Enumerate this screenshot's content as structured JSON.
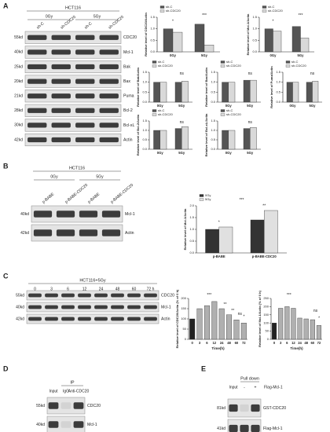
{
  "panel_labels": [
    "A",
    "B",
    "C",
    "D",
    "E"
  ],
  "blots": [
    {
      "header": "HCT116",
      "groups": [
        "0Gy",
        "5Gy"
      ],
      "lanes": [
        "sh-C",
        "sh-CDC20",
        "sh-C",
        "sh-CDC20"
      ],
      "rows": [
        {
          "size": "55kd",
          "name": "CDC20"
        },
        {
          "size": "40kd",
          "name": "Mcl-1"
        },
        {
          "size": "25kd",
          "name": "Bak"
        },
        {
          "size": "20kd",
          "name": "Bax"
        },
        {
          "size": "21kd",
          "name": "Puma"
        },
        {
          "size": "28kd",
          "name": "Bcl-2"
        },
        {
          "size": "30kd",
          "name": "Bcl-xL"
        },
        {
          "size": "42kd",
          "name": "Actin"
        }
      ]
    },
    {
      "header": "HCT116",
      "groups": [
        "0Gy",
        "5Gy"
      ],
      "lanes": [
        "p-BABE",
        "p-BABE-CDC20",
        "p-BABE",
        "p-BABE-CDC20"
      ],
      "rows": [
        {
          "size": "40kd",
          "name": "Mcl-1"
        },
        {
          "size": "42kd",
          "name": "Actin"
        }
      ]
    },
    {
      "header": "HCT116+5Gy",
      "lanes": [
        "0",
        "3",
        "6",
        "12",
        "24",
        "48",
        "60",
        "72 h"
      ],
      "rows": [
        {
          "size": "55kd",
          "name": "CDC20"
        },
        {
          "size": "40kd",
          "name": "Mcl-1"
        },
        {
          "size": "42kd",
          "name": "Actin"
        }
      ]
    },
    {
      "header": "IP",
      "lanes": [
        "Input",
        "IgG",
        "Anti-CDC20"
      ],
      "rows": [
        {
          "size": "55kd",
          "name": "CDC20"
        },
        {
          "size": "40kd",
          "name": "Mcl-1"
        }
      ]
    },
    {
      "header": "Pull down",
      "lanes": [
        "Input",
        "-",
        "+"
      ],
      "lane_label": "Flag-Mcl-1",
      "rows": [
        {
          "size": "81kd",
          "name": "GST-CDC20"
        },
        {
          "size": "41kd",
          "name": "Flag-Mcl-1"
        }
      ]
    }
  ],
  "chart_data": [
    {
      "type": "bar",
      "ylabel": "Relative level of CDC20/Actin",
      "categories": [
        "0Gy",
        "5Gy"
      ],
      "series": [
        {
          "name": "sh-C",
          "color": "#555555",
          "values": [
            1.0,
            1.2
          ]
        },
        {
          "name": "sh-CDC20",
          "color": "#d9d9d9",
          "values": [
            0.85,
            0.3
          ]
        }
      ],
      "ylim": [
        0,
        1.5
      ],
      "yticks": [
        {
          "value": 0,
          "label": "0.0"
        },
        {
          "value": 0.5,
          "label": "0.5"
        },
        {
          "value": 1,
          "label": "1.0"
        },
        {
          "value": 1.5,
          "label": "1.5"
        }
      ],
      "annotations": [
        "*",
        "***"
      ]
    },
    {
      "type": "bar",
      "ylabel": "Relative level of Mcl-1/Actin",
      "categories": [
        "0Gy",
        "5Gy"
      ],
      "series": [
        {
          "name": "sh-C",
          "color": "#555555",
          "values": [
            1.0,
            1.1
          ]
        },
        {
          "name": "sh-CDC20",
          "color": "#d9d9d9",
          "values": [
            0.9,
            0.6
          ]
        }
      ],
      "ylim": [
        0,
        1.5
      ],
      "yticks": [
        {
          "value": 0,
          "label": "0.0"
        },
        {
          "value": 0.5,
          "label": "0.5"
        },
        {
          "value": 1,
          "label": "1.0"
        },
        {
          "value": 1.5,
          "label": "1.5"
        }
      ],
      "annotations": [
        "*",
        "***"
      ]
    },
    {
      "type": "bar",
      "ylabel": "Relative level of Bak/Actin",
      "categories": [
        "0Gy",
        "5Gy"
      ],
      "series": [
        {
          "name": "sh-C",
          "color": "#555555",
          "values": [
            1.0,
            1.0
          ]
        },
        {
          "name": "sh-CDC20",
          "color": "#d9d9d9",
          "values": [
            1.0,
            1.05
          ]
        }
      ],
      "ylim": [
        0,
        1.5
      ],
      "yticks": [
        {
          "value": 0,
          "label": "0.0"
        },
        {
          "value": 0.5,
          "label": "0.5"
        },
        {
          "value": 1,
          "label": "1.0"
        },
        {
          "value": 1.5,
          "label": "1.5"
        }
      ],
      "annotations": [
        "ns"
      ]
    },
    {
      "type": "bar",
      "ylabel": "Relative level of Bax/Actin",
      "categories": [
        "0Gy",
        "5Gy"
      ],
      "series": [
        {
          "name": "sh-C",
          "color": "#555555",
          "values": [
            1.0,
            1.1
          ]
        },
        {
          "name": "sh-CDC20",
          "color": "#d9d9d9",
          "values": [
            1.0,
            1.1
          ]
        }
      ],
      "ylim": [
        0,
        1.5
      ],
      "yticks": [
        {
          "value": 0,
          "label": "0.0"
        },
        {
          "value": 0.5,
          "label": "0.5"
        },
        {
          "value": 1,
          "label": "1.0"
        },
        {
          "value": 1.5,
          "label": "1.5"
        }
      ],
      "annotations": [
        "ns"
      ]
    },
    {
      "type": "bar",
      "ylabel": "Relative level of Puma/Actin",
      "categories": [
        "0Gy",
        "5Gy"
      ],
      "series": [
        {
          "name": "sh-C",
          "color": "#555555",
          "values": [
            1.0,
            1.0
          ]
        },
        {
          "name": "sh-CDC20",
          "color": "#d9d9d9",
          "values": [
            1.0,
            1.05
          ]
        }
      ],
      "ylim": [
        0,
        1.5
      ],
      "yticks": [
        {
          "value": 0,
          "label": "0.0"
        },
        {
          "value": 0.5,
          "label": "0.5"
        },
        {
          "value": 1,
          "label": "1.0"
        },
        {
          "value": 1.5,
          "label": "1.5"
        }
      ],
      "annotations": [
        "ns"
      ]
    },
    {
      "type": "bar",
      "ylabel": "Relative level of Bcl-2/Actin",
      "categories": [
        "0Gy",
        "5Gy"
      ],
      "series": [
        {
          "name": "sh-C",
          "color": "#555555",
          "values": [
            1.0,
            1.1
          ]
        },
        {
          "name": "sh-CDC20",
          "color": "#d9d9d9",
          "values": [
            1.0,
            1.2
          ]
        }
      ],
      "ylim": [
        0,
        1.5
      ],
      "yticks": [
        {
          "value": 0,
          "label": "0.0"
        },
        {
          "value": 0.5,
          "label": "0.5"
        },
        {
          "value": 1,
          "label": "1.0"
        },
        {
          "value": 1.5,
          "label": "1.5"
        }
      ],
      "annotations": [
        "ns"
      ]
    },
    {
      "type": "bar",
      "ylabel": "Relative level of Bcl-xL/Actin",
      "categories": [
        "0Gy",
        "5Gy"
      ],
      "series": [
        {
          "name": "sh-C",
          "color": "#555555",
          "values": [
            1.0,
            1.1
          ]
        },
        {
          "name": "sh-CDC20",
          "color": "#d9d9d9",
          "values": [
            1.0,
            1.15
          ]
        }
      ],
      "ylim": [
        0,
        1.5
      ],
      "yticks": [
        {
          "value": 0,
          "label": "0.0"
        },
        {
          "value": 0.5,
          "label": "0.5"
        },
        {
          "value": 1,
          "label": "1.0"
        },
        {
          "value": 1.5,
          "label": "1.5"
        }
      ],
      "annotations": [
        "ns"
      ]
    },
    {
      "type": "bar",
      "ylabel": "Relative level of Mcl-1/Actin",
      "categories": [
        "p-BABE",
        "p-BABE-CDC20"
      ],
      "series": [
        {
          "name": "0Gy",
          "color": "#333333",
          "values": [
            1.0,
            1.4
          ]
        },
        {
          "name": "5Gy",
          "color": "#e0e0e0",
          "values": [
            1.1,
            1.8
          ]
        }
      ],
      "ylim": [
        0,
        2
      ],
      "yticks": [
        {
          "value": 0,
          "label": "0.0"
        },
        {
          "value": 0.5,
          "label": "0.5"
        },
        {
          "value": 1,
          "label": "1.0"
        },
        {
          "value": 1.5,
          "label": "1.5"
        },
        {
          "value": 2,
          "label": "2.0"
        }
      ],
      "annotations": [
        "*",
        "**",
        "***"
      ]
    },
    {
      "type": "bar",
      "ylabel": "Relative level of CDC20/Actin (% of 0 h)",
      "xlabel": "Time(h)",
      "categories": [
        "0",
        "3",
        "6",
        "12",
        "24",
        "48",
        "60",
        "72"
      ],
      "color": "#b0b0b0",
      "values": [
        100,
        150,
        165,
        185,
        150,
        120,
        95,
        80
      ],
      "ylim": [
        0,
        200
      ],
      "yticks": [
        0,
        50,
        100,
        150,
        200
      ],
      "annotations": [
        "***",
        "**",
        "**",
        "ns",
        "*"
      ]
    },
    {
      "type": "bar",
      "ylabel": "Relative level of Mcl-1/Actin (% of 0 h)",
      "xlabel": "Time(h)",
      "categories": [
        "0",
        "3",
        "6",
        "12",
        "24",
        "48",
        "60",
        "72"
      ],
      "color": "#b0b0b0",
      "values": [
        100,
        190,
        200,
        190,
        130,
        125,
        120,
        85
      ],
      "ylim": [
        0,
        250
      ],
      "yticks": [
        0,
        50,
        100,
        150,
        200,
        250
      ],
      "annotations": [
        "***",
        "ns",
        "*"
      ]
    }
  ]
}
